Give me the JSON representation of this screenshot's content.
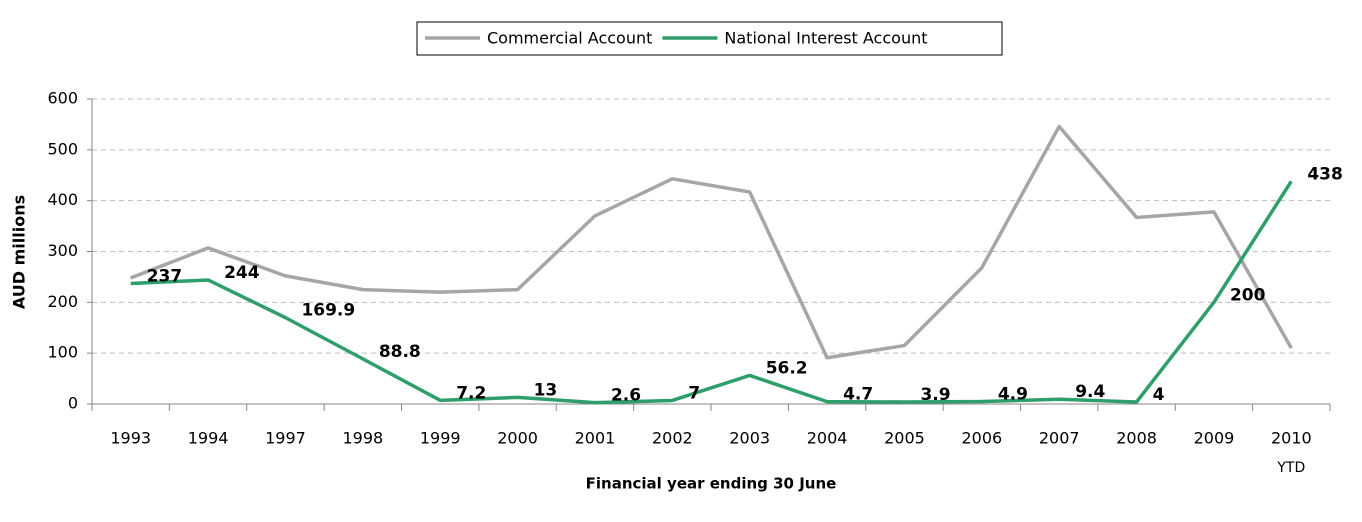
{
  "chart_data": {
    "type": "line",
    "categories": [
      "1993",
      "1994",
      "1997",
      "1998",
      "1999",
      "2000",
      "2001",
      "2002",
      "2003",
      "2004",
      "2005",
      "2006",
      "2007",
      "2008",
      "2009",
      [
        "2010",
        "YTD"
      ]
    ],
    "series": [
      {
        "name": "Commercial Account",
        "color": "#a6a6a6",
        "values": [
          248,
          307,
          252,
          225,
          220,
          225,
          370,
          443,
          417,
          91,
          115,
          268,
          546,
          367,
          378,
          110
        ]
      },
      {
        "name": "National Interest Account",
        "color": "#2e9e6b",
        "values": [
          237,
          244,
          169.9,
          88.8,
          7.2,
          13,
          2.6,
          7,
          56.2,
          4.7,
          3.9,
          4.9,
          9.4,
          4,
          200,
          438
        ],
        "show_value_labels": true
      }
    ],
    "y_label": "AUD millions",
    "x_label": "Financial year ending 30 June",
    "ylim": [
      0,
      600
    ],
    "yticks": [
      0,
      100,
      200,
      300,
      400,
      500,
      600
    ],
    "grid": true,
    "legend": "top"
  }
}
